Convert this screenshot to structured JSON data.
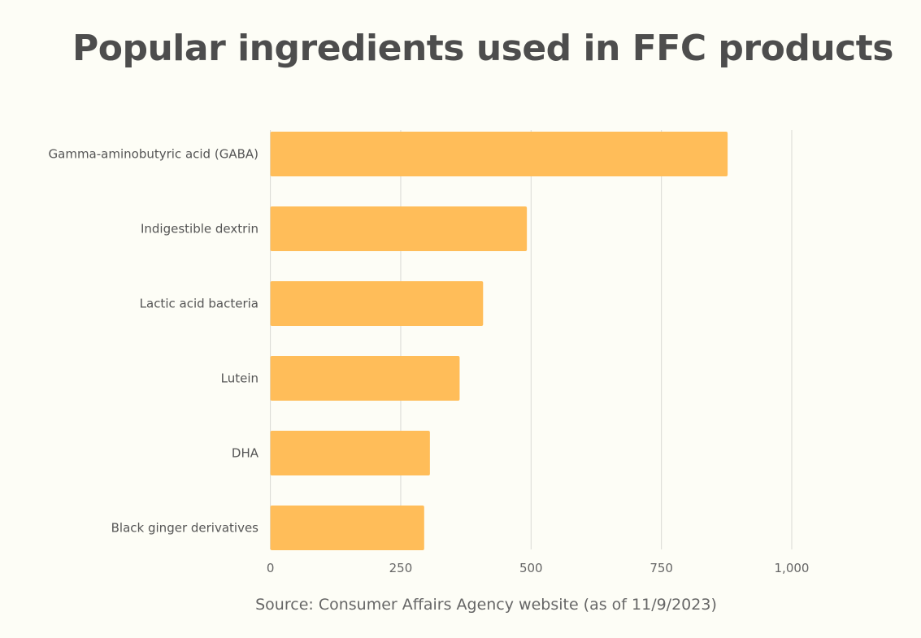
{
  "chart_data": {
    "type": "bar",
    "orientation": "horizontal",
    "title": "Popular ingredients used in FFC products",
    "categories": [
      "Gamma-aminobutyric acid (GABA)",
      "Indigestible dextrin",
      "Lactic acid bacteria",
      "Lutein",
      "DHA",
      "Black ginger derivatives"
    ],
    "values": [
      877,
      492,
      408,
      363,
      306,
      295
    ],
    "xlabel": "",
    "ylabel": "",
    "xlim": [
      0,
      1000
    ],
    "xticks": [
      0,
      250,
      500,
      750,
      1000
    ],
    "xtick_labels": [
      "0",
      "250",
      "500",
      "750",
      "1,000"
    ],
    "grid": true,
    "bar_color": "#ffbd59",
    "source": "Source: Consumer Affairs Agency website (as of 11/9/2023)"
  }
}
